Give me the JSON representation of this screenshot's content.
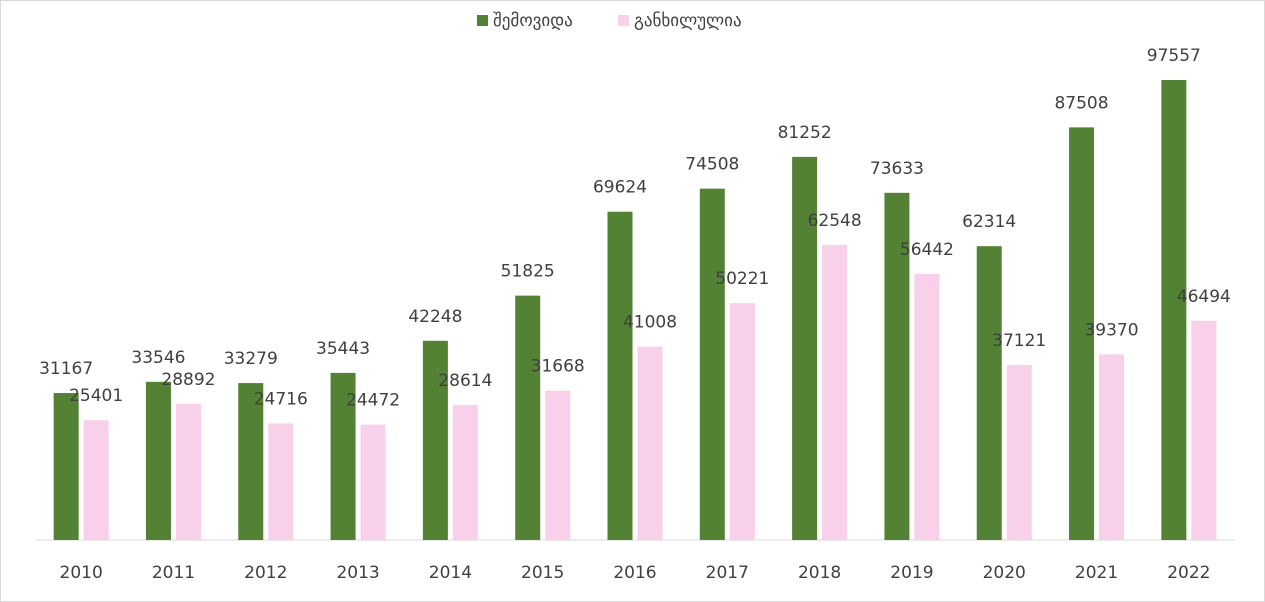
{
  "chart_data": {
    "type": "bar",
    "categories": [
      "2010",
      "2011",
      "2012",
      "2013",
      "2014",
      "2015",
      "2016",
      "2017",
      "2018",
      "2019",
      "2020",
      "2021",
      "2022"
    ],
    "series": [
      {
        "name": "შემოვიდა",
        "color": "#548235",
        "values": [
          31167,
          33546,
          33279,
          35443,
          42248,
          51825,
          69624,
          74508,
          81252,
          73633,
          62314,
          87508,
          97557
        ]
      },
      {
        "name": "განხილულია",
        "color": "#f8d0ea",
        "values": [
          25401,
          28892,
          24716,
          24472,
          28614,
          31668,
          41008,
          50221,
          62548,
          56442,
          37121,
          39370,
          46494
        ]
      }
    ],
    "legend": "top"
  }
}
